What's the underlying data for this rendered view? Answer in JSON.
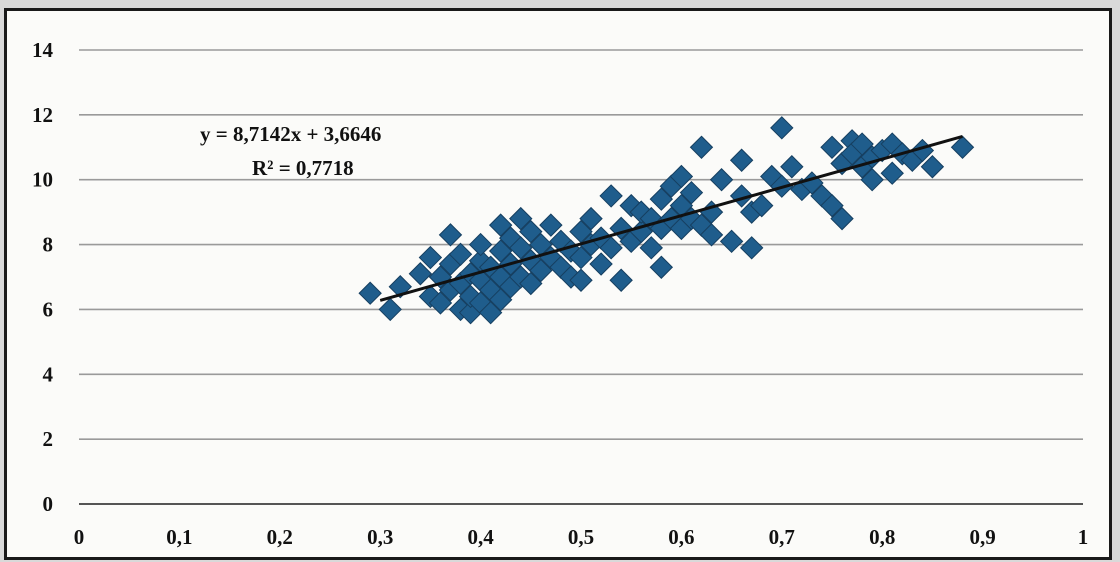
{
  "chart_data": {
    "type": "scatter",
    "title": "",
    "xlabel": "",
    "ylabel": "",
    "xlim": [
      0,
      1
    ],
    "ylim": [
      0,
      14
    ],
    "xticks": [
      "0",
      "0,1",
      "0,2",
      "0,3",
      "0,4",
      "0,5",
      "0,6",
      "0,7",
      "0,8",
      "0,9",
      "1"
    ],
    "yticks": [
      "0",
      "2",
      "4",
      "6",
      "8",
      "10",
      "12",
      "14"
    ],
    "grid": true,
    "marker_color": "#1f5d8c",
    "marker": "diamond",
    "trendline": {
      "type": "linear",
      "slope": 8.7142,
      "intercept": 3.6646,
      "x_range": [
        0.3,
        0.88
      ],
      "color": "#111111",
      "equation_label": "y = 8,7142x + 3,6646",
      "r2_label": "R² = 0,7718"
    },
    "series": [
      {
        "points": [
          [
            0.29,
            6.5
          ],
          [
            0.31,
            6.0
          ],
          [
            0.32,
            6.7
          ],
          [
            0.34,
            7.1
          ],
          [
            0.35,
            6.4
          ],
          [
            0.35,
            7.6
          ],
          [
            0.36,
            6.2
          ],
          [
            0.36,
            7.0
          ],
          [
            0.37,
            6.6
          ],
          [
            0.37,
            7.4
          ],
          [
            0.37,
            8.3
          ],
          [
            0.38,
            6.0
          ],
          [
            0.38,
            6.8
          ],
          [
            0.38,
            7.7
          ],
          [
            0.39,
            5.9
          ],
          [
            0.39,
            6.4
          ],
          [
            0.39,
            7.1
          ],
          [
            0.4,
            6.2
          ],
          [
            0.4,
            6.9
          ],
          [
            0.4,
            7.5
          ],
          [
            0.4,
            8.0
          ],
          [
            0.41,
            5.9
          ],
          [
            0.41,
            6.6
          ],
          [
            0.41,
            7.3
          ],
          [
            0.42,
            6.3
          ],
          [
            0.42,
            7.0
          ],
          [
            0.42,
            7.8
          ],
          [
            0.42,
            8.6
          ],
          [
            0.43,
            6.7
          ],
          [
            0.43,
            7.4
          ],
          [
            0.43,
            8.2
          ],
          [
            0.44,
            7.0
          ],
          [
            0.44,
            7.9
          ],
          [
            0.44,
            8.8
          ],
          [
            0.45,
            6.8
          ],
          [
            0.45,
            7.5
          ],
          [
            0.45,
            8.4
          ],
          [
            0.46,
            7.2
          ],
          [
            0.46,
            8.0
          ],
          [
            0.47,
            7.6
          ],
          [
            0.47,
            8.6
          ],
          [
            0.48,
            7.3
          ],
          [
            0.48,
            8.1
          ],
          [
            0.49,
            7.0
          ],
          [
            0.49,
            7.8
          ],
          [
            0.5,
            6.9
          ],
          [
            0.5,
            7.6
          ],
          [
            0.5,
            8.4
          ],
          [
            0.51,
            8.0
          ],
          [
            0.51,
            8.8
          ],
          [
            0.52,
            7.4
          ],
          [
            0.52,
            8.2
          ],
          [
            0.53,
            7.9
          ],
          [
            0.53,
            9.5
          ],
          [
            0.54,
            6.9
          ],
          [
            0.54,
            8.5
          ],
          [
            0.55,
            8.1
          ],
          [
            0.55,
            9.2
          ],
          [
            0.56,
            8.4
          ],
          [
            0.56,
            9.0
          ],
          [
            0.57,
            7.9
          ],
          [
            0.57,
            8.8
          ],
          [
            0.58,
            7.3
          ],
          [
            0.58,
            8.5
          ],
          [
            0.58,
            9.4
          ],
          [
            0.59,
            8.8
          ],
          [
            0.59,
            9.8
          ],
          [
            0.6,
            8.5
          ],
          [
            0.6,
            9.2
          ],
          [
            0.6,
            10.1
          ],
          [
            0.61,
            8.8
          ],
          [
            0.61,
            9.6
          ],
          [
            0.62,
            11.0
          ],
          [
            0.62,
            8.6
          ],
          [
            0.63,
            9.0
          ],
          [
            0.63,
            8.3
          ],
          [
            0.64,
            10.0
          ],
          [
            0.65,
            8.1
          ],
          [
            0.66,
            9.5
          ],
          [
            0.66,
            10.6
          ],
          [
            0.67,
            7.9
          ],
          [
            0.67,
            9.0
          ],
          [
            0.68,
            9.2
          ],
          [
            0.69,
            10.1
          ],
          [
            0.7,
            11.6
          ],
          [
            0.7,
            9.8
          ],
          [
            0.71,
            10.4
          ],
          [
            0.72,
            9.7
          ],
          [
            0.73,
            9.9
          ],
          [
            0.74,
            9.5
          ],
          [
            0.75,
            11.0
          ],
          [
            0.75,
            9.2
          ],
          [
            0.76,
            8.8
          ],
          [
            0.76,
            10.5
          ],
          [
            0.77,
            11.2
          ],
          [
            0.77,
            10.8
          ],
          [
            0.78,
            10.4
          ],
          [
            0.78,
            11.1
          ],
          [
            0.79,
            10.0
          ],
          [
            0.79,
            10.7
          ],
          [
            0.8,
            10.9
          ],
          [
            0.81,
            10.2
          ],
          [
            0.81,
            11.1
          ],
          [
            0.82,
            10.8
          ],
          [
            0.83,
            10.6
          ],
          [
            0.84,
            10.9
          ],
          [
            0.85,
            10.4
          ],
          [
            0.88,
            11.0
          ]
        ]
      }
    ]
  }
}
